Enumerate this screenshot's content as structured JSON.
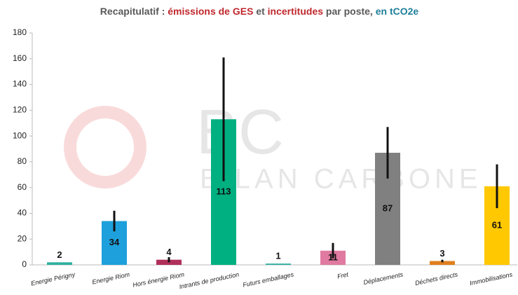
{
  "chart_data": {
    "type": "bar",
    "title_segments": [
      {
        "text": "Recapitulatif : ",
        "color": "#595959"
      },
      {
        "text": "émissions de GES",
        "color": "#c0282d"
      },
      {
        "text": " et ",
        "color": "#595959"
      },
      {
        "text": "incertitudes",
        "color": "#c0282d"
      },
      {
        "text": " par poste, ",
        "color": "#595959"
      },
      {
        "text": "en tCO2e",
        "color": "#1f7f9a"
      }
    ],
    "watermark": [
      "BC",
      "BILAN CARBONE"
    ],
    "categories": [
      "Energie Périgny",
      "Energie Riom",
      "Hors énergie Riom",
      "Intrants de production",
      "Futurs emballages",
      "Fret",
      "Déplacements",
      "Déchets directs",
      "Immobilisations"
    ],
    "values": [
      2,
      34,
      4,
      113,
      1,
      11,
      87,
      3,
      61
    ],
    "errors": [
      0,
      8,
      2,
      48,
      0,
      6,
      20,
      1,
      17
    ],
    "colors": [
      "#2eb0a0",
      "#1ea0dc",
      "#b0305a",
      "#00b080",
      "#30b0a0",
      "#e07aa0",
      "#808080",
      "#e08020",
      "#ffc800"
    ],
    "ylim": [
      0,
      180
    ],
    "yticks": [
      0,
      20,
      40,
      60,
      80,
      100,
      120,
      140,
      160,
      180
    ],
    "grid": false
  }
}
